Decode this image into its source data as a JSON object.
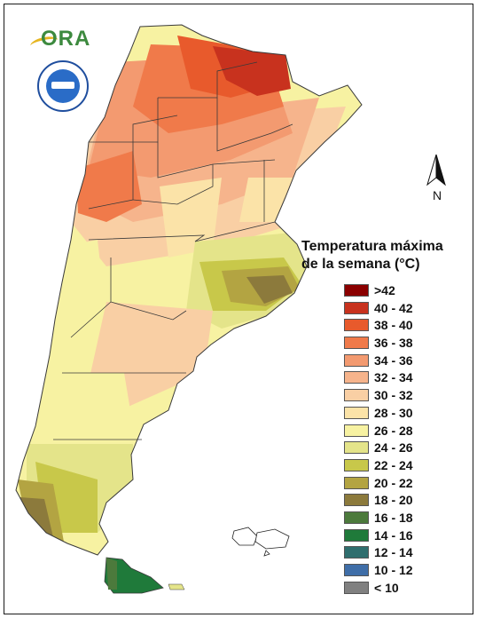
{
  "legend": {
    "title_line1": "Temperatura máxima",
    "title_line2": "de la semana (°C)",
    "items": [
      {
        "label": ">42",
        "color": "#8b0000"
      },
      {
        "label": "40 - 42",
        "color": "#c8321e"
      },
      {
        "label": "38 - 40",
        "color": "#e85a2c"
      },
      {
        "label": "36 - 38",
        "color": "#f07a4a"
      },
      {
        "label": "34 - 36",
        "color": "#f39a70"
      },
      {
        "label": "32 - 34",
        "color": "#f6b48c"
      },
      {
        "label": "30 - 32",
        "color": "#f9cfa4"
      },
      {
        "label": "28 - 30",
        "color": "#fbe3a8"
      },
      {
        "label": "26 - 28",
        "color": "#f7f2a2"
      },
      {
        "label": "24 - 26",
        "color": "#e4e48a"
      },
      {
        "label": "22 - 24",
        "color": "#c8c84a"
      },
      {
        "label": "20 - 22",
        "color": "#b3a442"
      },
      {
        "label": "18 - 20",
        "color": "#8c7a3c"
      },
      {
        "label": "16 - 18",
        "color": "#4c7a3c"
      },
      {
        "label": "14 - 16",
        "color": "#1f7a3a"
      },
      {
        "label": "12 - 14",
        "color": "#2f6e6e"
      },
      {
        "label": "10 - 12",
        "color": "#3f6ea8"
      },
      {
        "label": "< 10",
        "color": "#808080"
      }
    ]
  },
  "logos": {
    "ora_text": "ORA",
    "seal_icon": "smn-seal-icon"
  },
  "north_arrow": {
    "label": "N"
  },
  "map_colors": {
    "outline": "#3a3a3a"
  }
}
